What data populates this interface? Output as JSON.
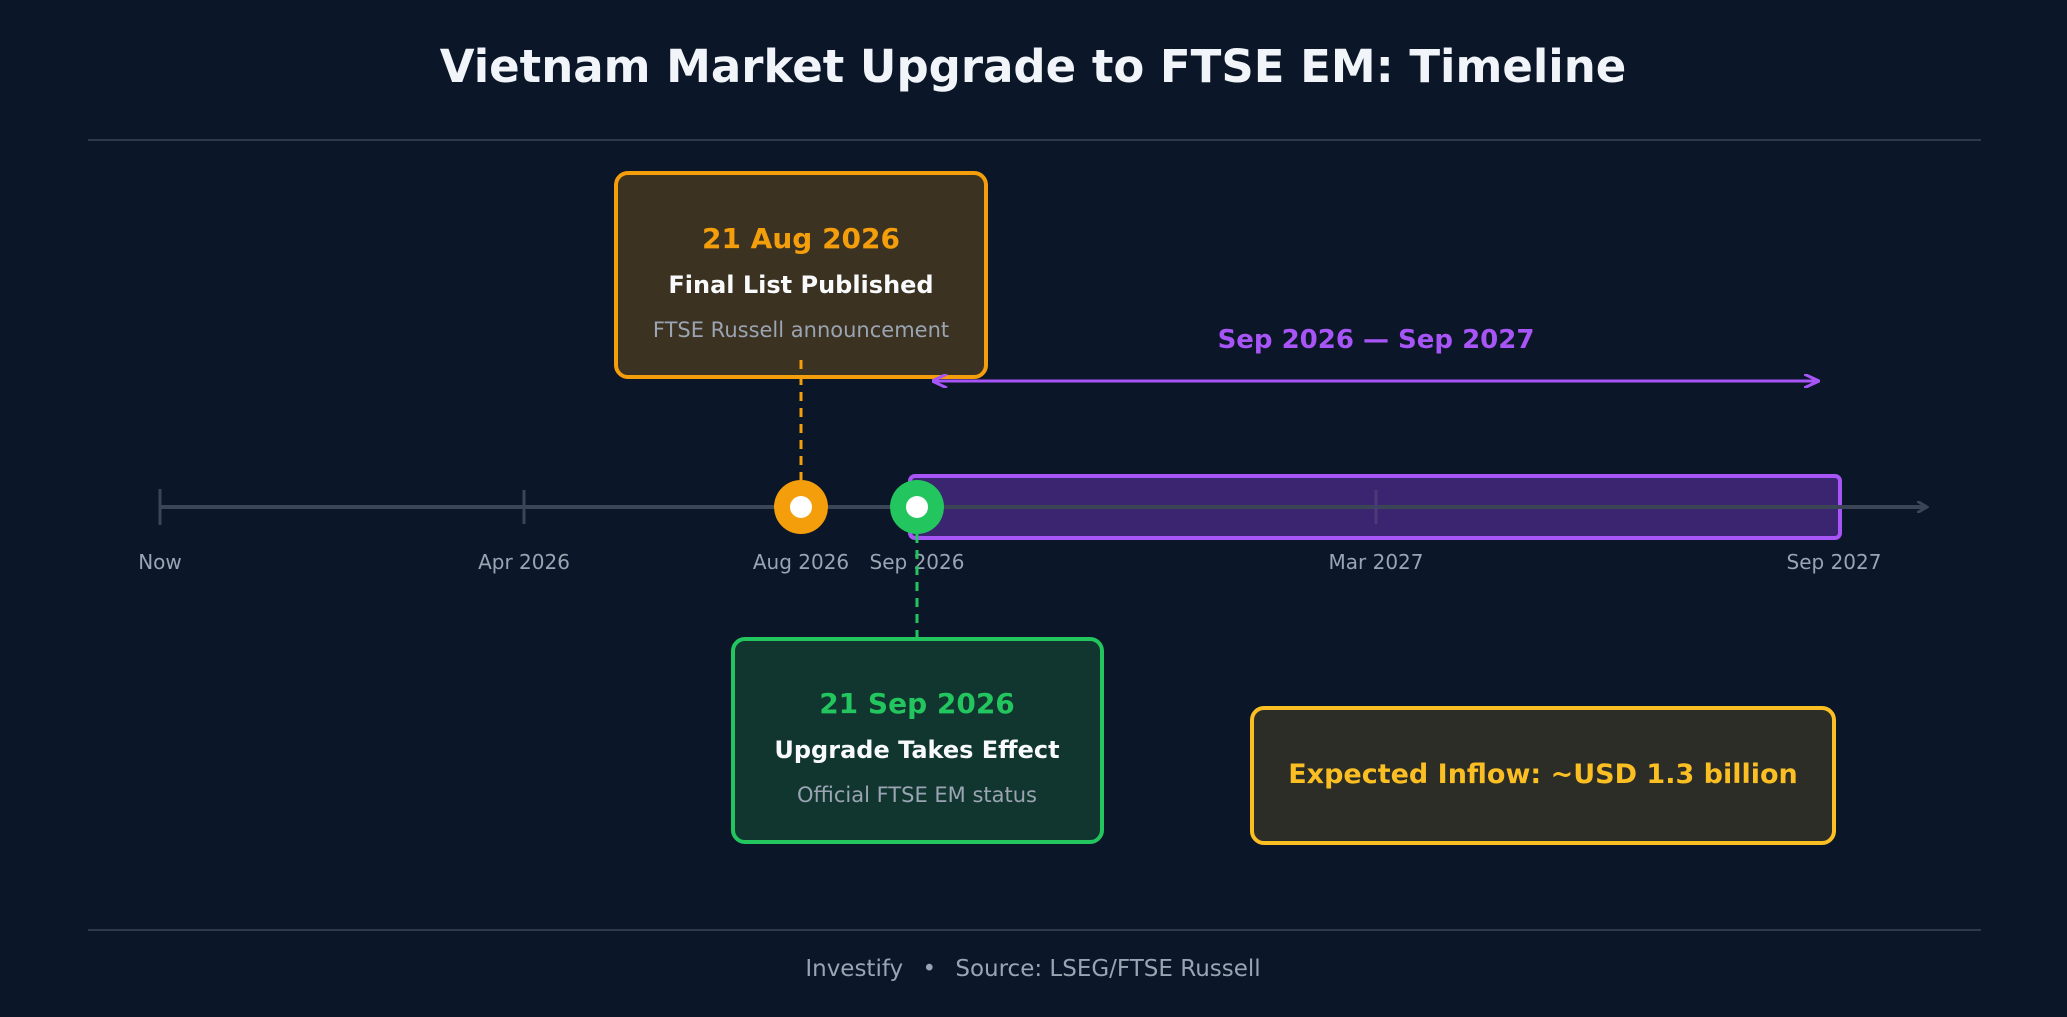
{
  "title": "Vietnam Market Upgrade to FTSE EM: Timeline",
  "colors": {
    "background": "#0b1628",
    "axis": "#3a4556",
    "orange": "#f59e0b",
    "green": "#22c55e",
    "purple": "#a855f7",
    "gold": "#fbbf24"
  },
  "axis": {
    "ticks": [
      {
        "id": "now",
        "label": "Now"
      },
      {
        "id": "apr-2026",
        "label": "Apr 2026"
      },
      {
        "id": "aug-2026",
        "label": "Aug 2026"
      },
      {
        "id": "sep-2026",
        "label": "Sep 2026"
      },
      {
        "id": "mar-2027",
        "label": "Mar 2027"
      },
      {
        "id": "sep-2027",
        "label": "Sep 2027"
      }
    ]
  },
  "events": {
    "final_list": {
      "date": "21 Aug 2026",
      "title": "Final List Published",
      "subtitle": "FTSE Russell announcement"
    },
    "upgrade": {
      "date": "21 Sep 2026",
      "title": "Upgrade Takes Effect",
      "subtitle": "Official FTSE EM status"
    }
  },
  "period": {
    "label": "Sep 2026 — Sep 2027"
  },
  "inflow": {
    "label": "Expected Inflow: ~USD 1.3 billion"
  },
  "footer": {
    "brand": "Investify",
    "separator": "•",
    "source": "Source: LSEG/FTSE Russell"
  }
}
